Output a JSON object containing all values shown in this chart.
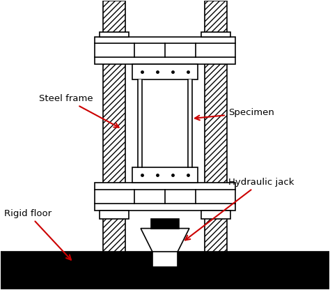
{
  "fig_width": 4.74,
  "fig_height": 4.16,
  "dpi": 100,
  "bg_color": "#ffffff",
  "hatch_pattern": "////",
  "labels": {
    "steel_frame": "Steel frame",
    "specimen": "Specimen",
    "rigid_floor": "Rigid floor",
    "hydraulic_jack": "Hydraulic jack"
  },
  "arrow_color": "#cc0000",
  "line_color": "#000000",
  "black_fill": "#000000"
}
